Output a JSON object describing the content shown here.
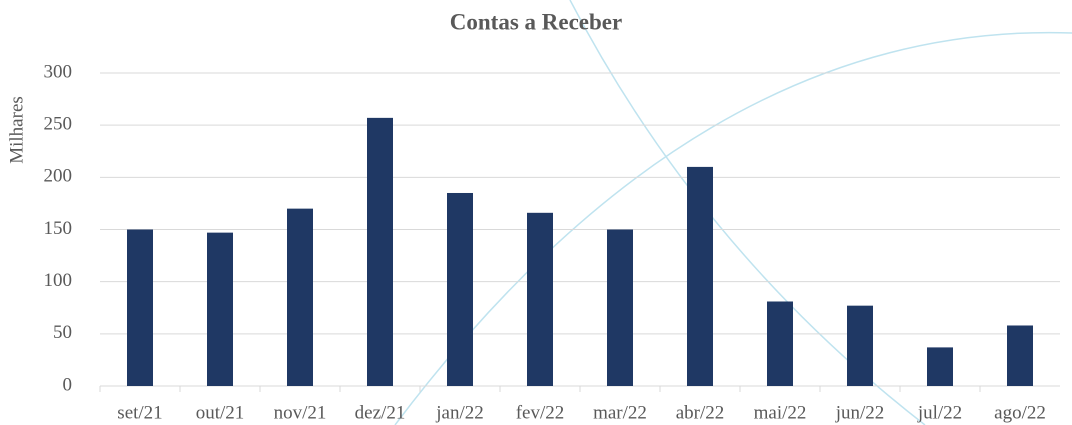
{
  "chart_data": {
    "type": "bar",
    "title": "Contas a Receber",
    "y_label": "Milhares",
    "categories": [
      "set/21",
      "out/21",
      "nov/21",
      "dez/21",
      "jan/22",
      "fev/22",
      "mar/22",
      "abr/22",
      "mai/22",
      "jun/22",
      "jul/22",
      "ago/22"
    ],
    "values": [
      150,
      147,
      170,
      257,
      185,
      166,
      150,
      210,
      81,
      77,
      37,
      58
    ],
    "color": "#1f3864",
    "ylim": [
      0,
      300
    ],
    "yticks": [
      0,
      50,
      100,
      150,
      200,
      250,
      300
    ],
    "grid": true
  }
}
